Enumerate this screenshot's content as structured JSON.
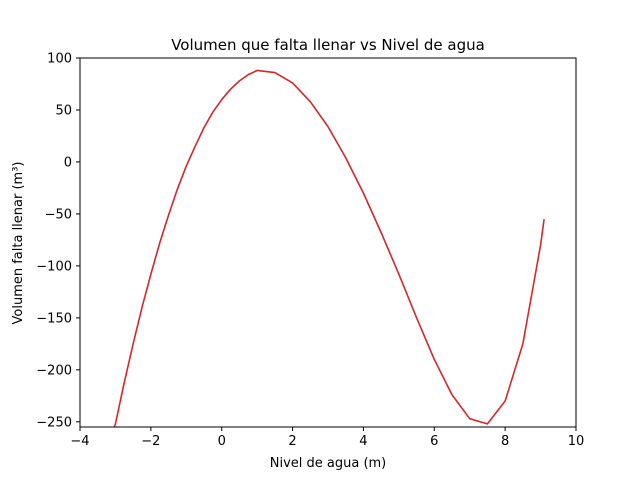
{
  "chart_data": {
    "type": "line",
    "title": "Volumen que falta llenar vs Nivel de agua",
    "xlabel": "Nivel de agua (m)",
    "ylabel": "Volumen falta llenar (m³)",
    "xlim": [
      -4,
      10
    ],
    "ylim": [
      -255,
      100
    ],
    "xticks": [
      -4,
      -2,
      0,
      2,
      4,
      6,
      8,
      10
    ],
    "xtick_labels": [
      "−4",
      "−2",
      "0",
      "2",
      "4",
      "6",
      "8",
      "10"
    ],
    "yticks": [
      100,
      50,
      0,
      -50,
      -100,
      -150,
      -200,
      -250
    ],
    "ytick_labels": [
      "100",
      "50",
      "0",
      "−50",
      "−100",
      "−150",
      "−200",
      "−250"
    ],
    "grid": false,
    "series": [
      {
        "color": "#d62728",
        "x": [
          -3.1,
          -3.0,
          -2.75,
          -2.5,
          -2.25,
          -2.0,
          -1.75,
          -1.5,
          -1.25,
          -1.0,
          -0.75,
          -0.5,
          -0.25,
          0.0,
          0.25,
          0.5,
          0.75,
          1.0,
          1.5,
          2.0,
          2.5,
          3.0,
          3.5,
          4.0,
          4.5,
          5.0,
          5.5,
          6.0,
          6.5,
          7.0,
          7.5,
          8.0,
          8.5,
          9.0,
          9.1
        ],
        "y": [
          -262,
          -252,
          -212,
          -175,
          -140,
          -108,
          -78,
          -51,
          -26,
          -4,
          15,
          33,
          48,
          60,
          70,
          78,
          84,
          88,
          86,
          76,
          58,
          34,
          4,
          -30,
          -68,
          -108,
          -150,
          -190,
          -224,
          -247,
          -252,
          -230,
          -175,
          -80,
          -55
        ]
      }
    ]
  }
}
